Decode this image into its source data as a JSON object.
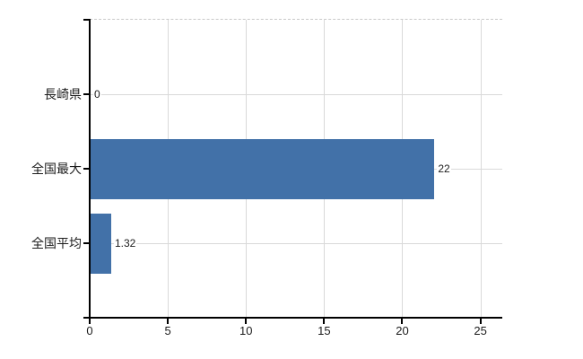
{
  "chart_data": {
    "type": "bar",
    "orientation": "horizontal",
    "title": "",
    "xlabel": "",
    "ylabel": "",
    "categories": [
      "長崎県",
      "全国最大",
      "全国平均"
    ],
    "values": [
      0,
      22,
      1.32
    ],
    "value_labels": [
      "0",
      "22",
      "1.32"
    ],
    "x_ticks": [
      0,
      5,
      10,
      15,
      20,
      25
    ],
    "x_tick_labels": [
      "0",
      "5",
      "10",
      "15",
      "20",
      "25"
    ],
    "xlim": [
      0,
      26.4
    ],
    "grid": {
      "vertical_at_x_ticks": true,
      "horizontal_at_category_centers": true,
      "top_boundary_dashed": true
    },
    "legend": null
  },
  "colors": {
    "bar": "#4271a8",
    "gridline": "#d9d9d9",
    "top_dashed_line": "#c9c9c9",
    "axis": "#000000",
    "text": "#1c1c1c",
    "background": "#ffffff"
  }
}
